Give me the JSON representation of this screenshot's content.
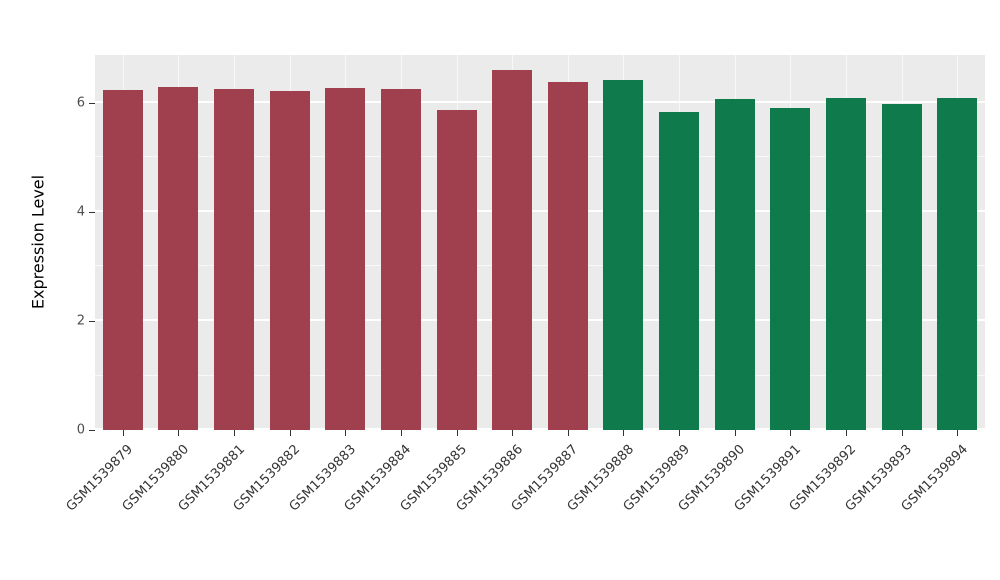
{
  "chart_data": {
    "type": "bar",
    "title": "",
    "xlabel": "",
    "ylabel": "Expression Level",
    "ylim": [
      0,
      6.88
    ],
    "yticks": [
      0,
      2,
      4,
      6
    ],
    "categories": [
      "GSM1539879",
      "GSM1539880",
      "GSM1539881",
      "GSM1539882",
      "GSM1539883",
      "GSM1539884",
      "GSM1539885",
      "GSM1539886",
      "GSM1539887",
      "GSM1539888",
      "GSM1539889",
      "GSM1539890",
      "GSM1539891",
      "GSM1539892",
      "GSM1539893",
      "GSM1539894"
    ],
    "values": [
      6.24,
      6.3,
      6.26,
      6.22,
      6.28,
      6.26,
      5.87,
      6.6,
      6.38,
      6.42,
      5.83,
      6.08,
      5.91,
      6.1,
      5.99,
      6.1
    ],
    "colors": [
      "#A03F4E",
      "#A03F4E",
      "#A03F4E",
      "#A03F4E",
      "#A03F4E",
      "#A03F4E",
      "#A03F4E",
      "#A03F4E",
      "#A03F4E",
      "#0F7A4C",
      "#0F7A4C",
      "#0F7A4C",
      "#0F7A4C",
      "#0F7A4C",
      "#0F7A4C",
      "#0F7A4C"
    ],
    "group_split_index": 9,
    "panel_background": "#EBEBEB",
    "gridline_color": "#FFFFFF",
    "legend": "none",
    "grid": "on"
  }
}
